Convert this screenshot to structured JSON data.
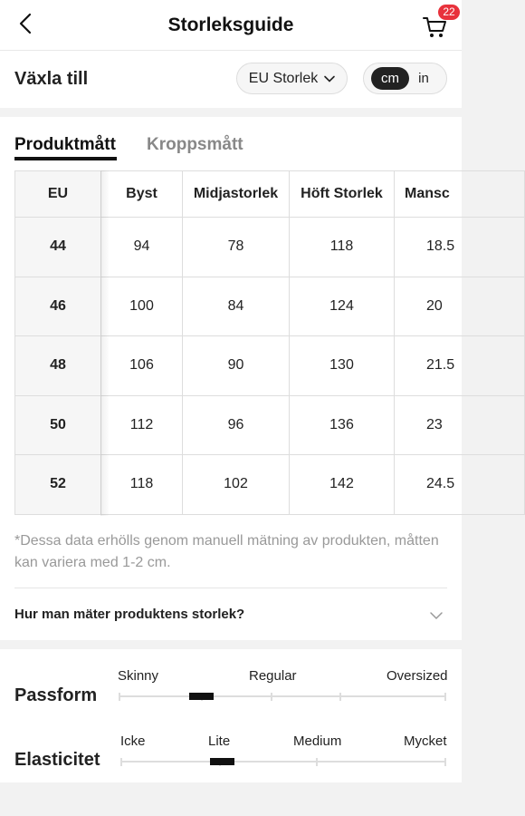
{
  "header": {
    "title": "Storleksguide",
    "cart_count": "22",
    "back_icon": "chevron-left-icon",
    "cart_icon": "cart-icon"
  },
  "switch_bar": {
    "label": "Växla till",
    "size_system": "EU Storlek",
    "units": [
      "cm",
      "in"
    ],
    "selected_unit": "cm"
  },
  "tabs": [
    {
      "label": "Produktmått",
      "active": true
    },
    {
      "label": "Kroppsmått",
      "active": false
    }
  ],
  "table": {
    "headers": [
      "EU",
      "Byst",
      "Midjastorlek",
      "Höft Storlek",
      "Mansc"
    ],
    "rows": [
      [
        "44",
        "94",
        "78",
        "118",
        "18.5"
      ],
      [
        "46",
        "100",
        "84",
        "124",
        "20"
      ],
      [
        "48",
        "106",
        "90",
        "130",
        "21.5"
      ],
      [
        "50",
        "112",
        "96",
        "136",
        "23"
      ],
      [
        "52",
        "118",
        "102",
        "142",
        "24.5"
      ]
    ]
  },
  "note": "*Dessa data erhölls genom manuell mätning av produkten, måtten kan variera med 1-2 cm.",
  "howto": {
    "label": "Hur man mäter produktens storlek?"
  },
  "fit": {
    "passform": {
      "title": "Passform",
      "labels": [
        "Skinny",
        "Regular",
        "Oversized"
      ],
      "level": 0.25
    },
    "elasticitet": {
      "title": "Elasticitet",
      "labels": [
        "Icke",
        "Lite",
        "Medium",
        "Mycket"
      ],
      "level": 0.31
    }
  },
  "colors": {
    "accent": "#111111",
    "badge": "#e8323c",
    "muted_text": "#999999",
    "page_bg": "#f2f2f2"
  }
}
